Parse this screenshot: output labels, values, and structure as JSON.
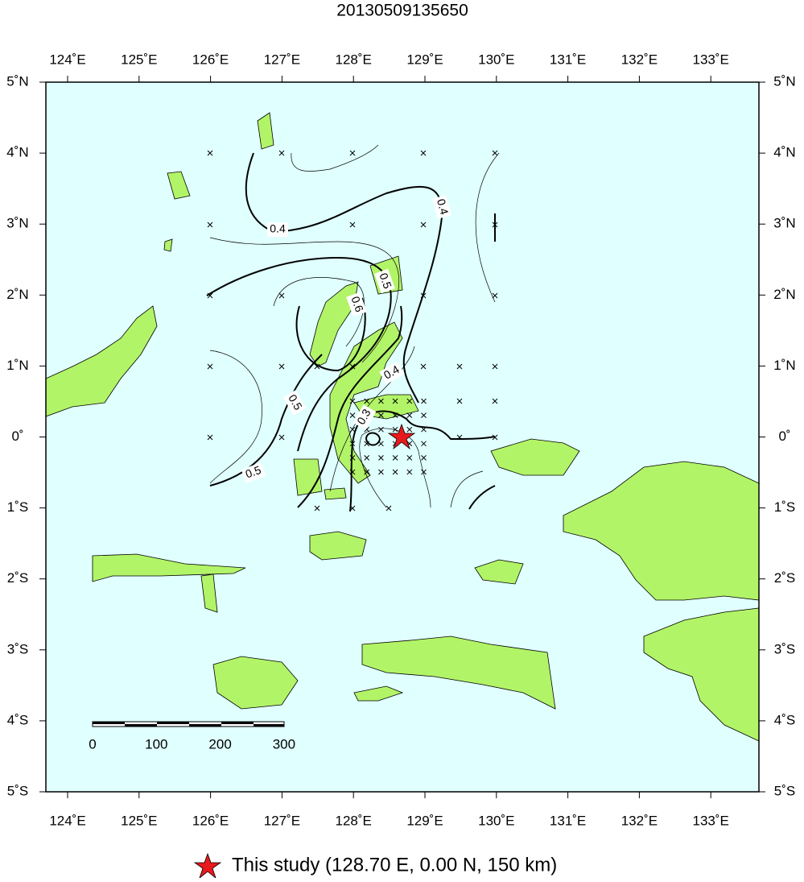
{
  "title": "20130509135650",
  "lon_labels": [
    "124˚E",
    "125˚E",
    "126˚E",
    "127˚E",
    "128˚E",
    "129˚E",
    "130˚E",
    "131˚E",
    "132˚E",
    "133˚E"
  ],
  "lat_labels": [
    "5˚N",
    "4˚N",
    "3˚N",
    "2˚N",
    "1˚N",
    "0˚",
    "1˚S",
    "2˚S",
    "3˚S",
    "4˚S",
    "5˚S"
  ],
  "contour_labels": [
    "0.4",
    "0.4",
    "0.5",
    "0.6",
    "0.4",
    "0.5",
    "0.3",
    "0.5"
  ],
  "scale_bar": {
    "labels": [
      0,
      100,
      200,
      300
    ]
  },
  "legend": {
    "text": "This study (128.70 E, 0.00 N, 150 km)"
  }
}
